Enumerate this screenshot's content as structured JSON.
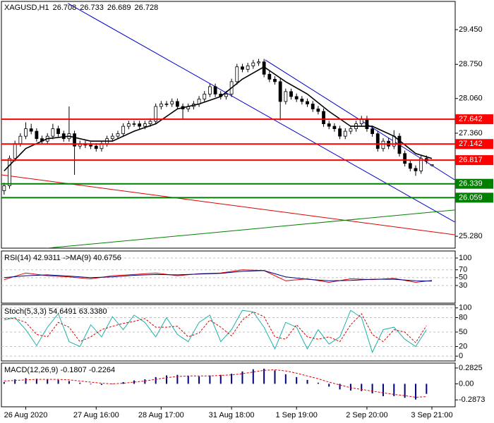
{
  "chart_data": [
    {
      "type": "candlestick",
      "title": "XAGUSD,H1",
      "color": "#000000",
      "xlim": [
        -0.5,
        83.3
      ],
      "ylim": [
        25.04,
        30.02
      ],
      "yticks": [
        {
          "value": 29.45,
          "label": "29.450"
        },
        {
          "value": 28.75,
          "label": "28.750"
        },
        {
          "value": 28.06,
          "label": "28.060"
        },
        {
          "value": 27.36,
          "label": "27.360"
        },
        {
          "value": 25.28,
          "label": "25.280"
        }
      ],
      "xticks": [
        {
          "value": 4,
          "label": "26 Aug 2020"
        },
        {
          "value": 17,
          "label": "27 Aug 16:00"
        },
        {
          "value": 29,
          "label": "28 Aug 17:00"
        },
        {
          "value": 42,
          "label": "31 Aug 18:00"
        },
        {
          "value": 54,
          "label": "1 Sep 19:00"
        },
        {
          "value": 67,
          "label": "2 Sep 20:00"
        },
        {
          "value": 79,
          "label": "3 Sep 21:00"
        }
      ],
      "open": [
        26.2,
        26.3,
        26.85,
        27.15,
        27.3,
        27.45,
        27.4,
        27.25,
        27.2,
        27.3,
        27.45,
        27.35,
        27.25,
        27.35,
        27.1,
        27.15,
        27.12,
        27.1,
        27.05,
        27.15,
        27.25,
        27.3,
        27.35,
        27.5,
        27.55,
        27.55,
        27.5,
        27.55,
        27.6,
        27.9,
        27.95,
        27.95,
        28.0,
        27.9,
        27.85,
        27.9,
        27.95,
        28.05,
        28.15,
        28.3,
        28.15,
        28.1,
        28.15,
        28.4,
        28.7,
        28.65,
        28.72,
        28.78,
        28.8,
        28.55,
        28.45,
        28.4,
        28.0,
        28.2,
        28.1,
        28.05,
        28.0,
        27.95,
        27.85,
        27.8,
        27.55,
        27.5,
        27.45,
        27.3,
        27.4,
        27.45,
        27.55,
        27.65,
        27.45,
        27.35,
        27.05,
        27.2,
        27.1,
        27.3,
        26.95,
        26.75,
        26.65,
        26.6,
        26.85,
        26.708
      ],
      "high": [
        26.36,
        26.91,
        27.21,
        27.36,
        27.58,
        27.55,
        27.46,
        27.31,
        27.36,
        27.55,
        27.51,
        27.41,
        27.9,
        27.41,
        27.21,
        27.21,
        27.18,
        27.16,
        27.21,
        27.31,
        27.36,
        27.41,
        27.56,
        27.61,
        27.61,
        27.61,
        27.61,
        27.66,
        27.96,
        28.01,
        28.01,
        28.06,
        28.06,
        27.96,
        27.96,
        28.01,
        28.11,
        28.21,
        28.36,
        28.36,
        28.21,
        28.21,
        28.46,
        28.76,
        28.76,
        28.78,
        28.84,
        28.86,
        28.86,
        28.61,
        28.51,
        28.46,
        28.26,
        28.26,
        28.16,
        28.11,
        28.06,
        28.01,
        27.91,
        27.86,
        27.61,
        27.56,
        27.51,
        27.46,
        27.51,
        27.61,
        27.71,
        27.71,
        27.51,
        27.41,
        27.26,
        27.26,
        27.42,
        27.36,
        27.01,
        26.81,
        26.71,
        26.91,
        26.91,
        26.733
      ],
      "low": [
        26.12,
        26.24,
        26.79,
        27.09,
        27.24,
        27.34,
        27.19,
        27.14,
        27.14,
        27.24,
        27.29,
        27.19,
        27.19,
        26.52,
        27.04,
        27.06,
        27.04,
        26.99,
        26.99,
        27.09,
        27.19,
        27.24,
        27.29,
        27.44,
        27.49,
        27.44,
        27.44,
        27.49,
        27.54,
        27.84,
        27.89,
        27.89,
        27.84,
        27.65,
        27.79,
        27.84,
        27.89,
        27.99,
        28.09,
        28.09,
        28.04,
        28.04,
        28.09,
        28.34,
        28.59,
        28.59,
        28.66,
        28.72,
        28.49,
        28.39,
        28.34,
        27.62,
        27.94,
        28.04,
        27.99,
        27.94,
        27.89,
        27.79,
        27.74,
        27.49,
        27.44,
        27.39,
        27.24,
        27.24,
        27.34,
        27.39,
        27.49,
        27.39,
        27.29,
        26.99,
        26.99,
        27.04,
        27.04,
        26.89,
        26.69,
        26.59,
        26.5,
        26.54,
        26.74,
        26.689
      ],
      "close": [
        26.3,
        26.85,
        27.15,
        27.3,
        27.45,
        27.4,
        27.25,
        27.2,
        27.3,
        27.45,
        27.35,
        27.25,
        27.35,
        27.1,
        27.15,
        27.12,
        27.1,
        27.05,
        27.15,
        27.25,
        27.3,
        27.35,
        27.5,
        27.55,
        27.55,
        27.5,
        27.55,
        27.6,
        27.9,
        27.95,
        27.95,
        28.0,
        27.9,
        27.85,
        27.9,
        27.95,
        28.05,
        28.15,
        28.3,
        28.15,
        28.1,
        28.15,
        28.4,
        28.7,
        28.65,
        28.72,
        28.78,
        28.8,
        28.55,
        28.45,
        28.4,
        28.0,
        28.2,
        28.1,
        28.05,
        28.0,
        27.95,
        27.85,
        27.8,
        27.55,
        27.5,
        27.45,
        27.3,
        27.4,
        27.45,
        27.55,
        27.65,
        27.45,
        27.35,
        27.05,
        27.2,
        27.1,
        27.3,
        26.95,
        26.75,
        26.65,
        26.6,
        26.85,
        26.8,
        26.728
      ],
      "ma": {
        "color": "#000000",
        "x": [
          0,
          4,
          8,
          12,
          16,
          20,
          24,
          28,
          32,
          36,
          40,
          44,
          48,
          52,
          56,
          60,
          64,
          68,
          72,
          76,
          79
        ],
        "values": [
          26.6,
          27.05,
          27.25,
          27.3,
          27.2,
          27.2,
          27.4,
          27.55,
          27.85,
          27.95,
          28.1,
          28.45,
          28.7,
          28.4,
          28.15,
          27.8,
          27.5,
          27.5,
          27.3,
          26.95,
          26.85
        ]
      },
      "levels": [
        {
          "value": 27.642,
          "color": "#ff0000"
        },
        {
          "value": 27.142,
          "color": "#ff0000"
        },
        {
          "value": 26.817,
          "color": "#ff0000"
        },
        {
          "value": 26.339,
          "color": "#008000"
        },
        {
          "value": 26.059,
          "color": "#008000"
        }
      ],
      "trendlines": [
        {
          "color": "#0000cc",
          "x": [
            48.2,
            83.2
          ],
          "values": [
            28.84,
            26.42
          ]
        },
        {
          "color": "#0000cc",
          "x": [
            11.8,
            83.2
          ],
          "values": [
            29.98,
            25.57
          ]
        },
        {
          "color": "#dd0000",
          "x": [
            -0.5,
            83.2
          ],
          "values": [
            26.52,
            25.31
          ]
        },
        {
          "color": "#008000",
          "x": [
            7.9,
            83.2
          ],
          "values": [
            25.04,
            25.81
          ]
        }
      ]
    },
    {
      "type": "line",
      "title": "RSI(14) 42.9311 ->MA(9) 40.6756",
      "ylim": [
        -15,
        118
      ],
      "yticks": [
        100,
        70,
        50,
        30
      ],
      "grid": true,
      "x": [
        0,
        4,
        8,
        12,
        16,
        20,
        24,
        28,
        32,
        36,
        40,
        44,
        48,
        52,
        56,
        60,
        64,
        68,
        72,
        76,
        79
      ],
      "series": [
        {
          "color": "#dd0000",
          "style": "solid",
          "values": [
            45,
            62,
            55,
            52,
            47,
            55,
            58,
            62,
            55,
            60,
            62,
            70,
            68,
            42,
            47,
            38,
            47,
            45,
            48,
            38,
            43
          ]
        },
        {
          "color": "#000080",
          "style": "solid",
          "values": [
            50,
            55,
            57,
            54,
            50,
            52,
            56,
            58,
            57,
            59,
            61,
            66,
            68,
            52,
            46,
            42,
            43,
            46,
            46,
            42,
            41
          ]
        }
      ]
    },
    {
      "type": "line",
      "title": "Stoch(5,3,3) 54.6491 63.3380",
      "ylim": [
        -10,
        107
      ],
      "yticks": [
        100,
        80,
        50,
        20,
        0
      ],
      "grid": true,
      "x": [
        0,
        2,
        4,
        6,
        8,
        10,
        12,
        14,
        16,
        18,
        20,
        22,
        24,
        26,
        28,
        30,
        32,
        34,
        36,
        38,
        40,
        42,
        44,
        46,
        48,
        50,
        52,
        54,
        56,
        58,
        60,
        62,
        64,
        66,
        68,
        70,
        72,
        74,
        76,
        78
      ],
      "series": [
        {
          "color": "#20b2aa",
          "style": "solid",
          "values": [
            75,
            80,
            55,
            22,
            60,
            88,
            30,
            20,
            65,
            40,
            82,
            55,
            85,
            70,
            40,
            80,
            45,
            30,
            70,
            85,
            30,
            55,
            95,
            92,
            60,
            15,
            70,
            60,
            15,
            55,
            25,
            40,
            95,
            80,
            8,
            55,
            60,
            35,
            20,
            55
          ]
        },
        {
          "color": "#dd0000",
          "style": "dashed",
          "values": [
            78,
            78,
            70,
            45,
            40,
            70,
            60,
            30,
            40,
            55,
            62,
            68,
            72,
            78,
            60,
            60,
            62,
            40,
            48,
            75,
            60,
            42,
            75,
            92,
            82,
            40,
            35,
            65,
            40,
            35,
            40,
            30,
            65,
            88,
            45,
            30,
            55,
            50,
            28,
            63
          ]
        }
      ]
    },
    {
      "type": "macd",
      "title": "MACD(12,26,9) -0.1807 -0.2264",
      "ylim": [
        -0.41,
        0.37
      ],
      "yticks": [
        0.2825,
        {
          "value": 0,
          "label": "0.00"
        },
        -0.2873
      ],
      "x": [
        0,
        2,
        4,
        6,
        8,
        10,
        12,
        14,
        16,
        18,
        20,
        22,
        24,
        26,
        28,
        30,
        32,
        34,
        36,
        38,
        40,
        42,
        44,
        46,
        48,
        50,
        52,
        54,
        56,
        58,
        60,
        62,
        64,
        66,
        68,
        70,
        72,
        74,
        76,
        78
      ],
      "series": [
        {
          "color": "#000080",
          "style": "histogram",
          "values": [
            0.03,
            0.08,
            0.1,
            0.09,
            0.08,
            0.07,
            0.05,
            0.02,
            -0.01,
            -0.02,
            0.0,
            0.03,
            0.06,
            0.08,
            0.12,
            0.15,
            0.16,
            0.14,
            0.13,
            0.15,
            0.16,
            0.18,
            0.22,
            0.26,
            0.27,
            0.24,
            0.17,
            0.12,
            0.07,
            0.02,
            -0.05,
            -0.1,
            -0.12,
            -0.13,
            -0.17,
            -0.22,
            -0.22,
            -0.25,
            -0.28,
            -0.18
          ]
        },
        {
          "color": "#dd0000",
          "style": "dashed",
          "values": [
            0.05,
            0.06,
            0.07,
            0.08,
            0.08,
            0.08,
            0.07,
            0.05,
            0.03,
            0.01,
            0.0,
            0.01,
            0.03,
            0.05,
            0.08,
            0.11,
            0.13,
            0.14,
            0.14,
            0.14,
            0.15,
            0.16,
            0.18,
            0.21,
            0.24,
            0.25,
            0.23,
            0.19,
            0.14,
            0.09,
            0.03,
            -0.02,
            -0.07,
            -0.1,
            -0.13,
            -0.16,
            -0.19,
            -0.21,
            -0.24,
            -0.23
          ]
        }
      ]
    }
  ]
}
